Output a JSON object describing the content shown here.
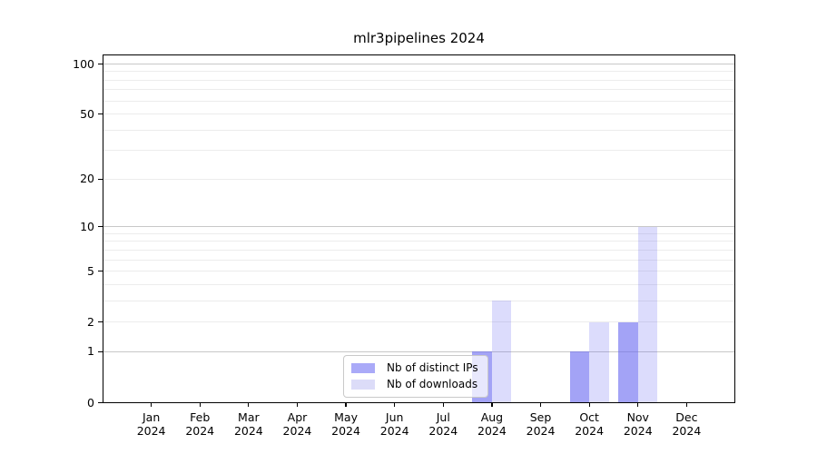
{
  "title": "mlr3pipelines 2024",
  "chart_data": {
    "type": "bar",
    "title": "mlr3pipelines 2024",
    "x_categories": [
      {
        "month": "Jan",
        "year": "2024"
      },
      {
        "month": "Feb",
        "year": "2024"
      },
      {
        "month": "Mar",
        "year": "2024"
      },
      {
        "month": "Apr",
        "year": "2024"
      },
      {
        "month": "May",
        "year": "2024"
      },
      {
        "month": "Jun",
        "year": "2024"
      },
      {
        "month": "Jul",
        "year": "2024"
      },
      {
        "month": "Aug",
        "year": "2024"
      },
      {
        "month": "Sep",
        "year": "2024"
      },
      {
        "month": "Oct",
        "year": "2024"
      },
      {
        "month": "Nov",
        "year": "2024"
      },
      {
        "month": "Dec",
        "year": "2024"
      }
    ],
    "series": [
      {
        "name": "Nb of distinct IPs",
        "color": "rgba(102,102,240,0.60)",
        "solid_color": "#aaaaf8",
        "values": [
          0,
          0,
          0,
          0,
          0,
          0,
          0,
          1,
          0,
          1,
          2,
          0
        ]
      },
      {
        "name": "Nb of downloads",
        "color": "rgba(102,102,240,0.23)",
        "solid_color": "#dcdcf8",
        "values": [
          0,
          0,
          0,
          0,
          0,
          0,
          0,
          3,
          0,
          2,
          10,
          0
        ]
      }
    ],
    "y_axis": {
      "scale": "log1p",
      "ticks": [
        0,
        1,
        2,
        5,
        10,
        20,
        50,
        100
      ],
      "gridlines_major": [
        1,
        10,
        100
      ],
      "gridlines_minor": [
        2,
        3,
        4,
        5,
        6,
        7,
        8,
        9,
        20,
        30,
        40,
        50,
        60,
        70,
        80,
        90
      ],
      "range": [
        0,
        115
      ]
    },
    "legend": {
      "position": "lower center"
    },
    "colors": {
      "gridline_major": "#c8c8c8",
      "gridline_minor": "#ececec",
      "axis": "#000000",
      "legend_border": "#c9c9c9"
    }
  }
}
